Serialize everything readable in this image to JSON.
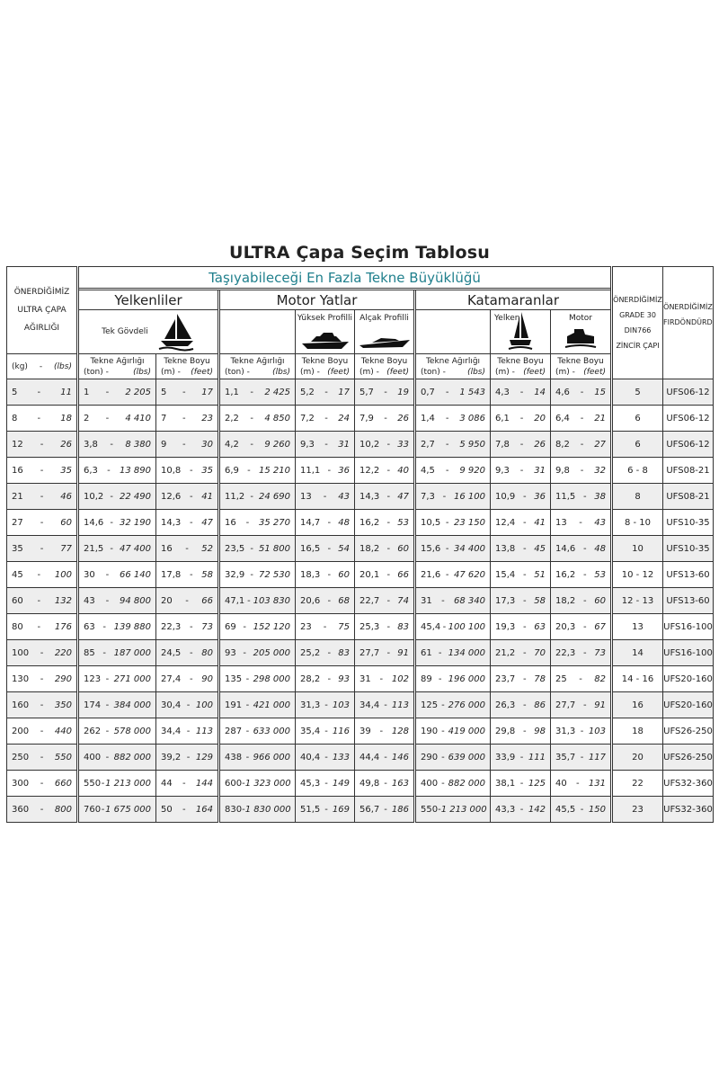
{
  "title": "ULTRA Çapa Seçim Tablosu",
  "header": {
    "main": "Taşıyabileceği En Fazla Tekne Büyüklüğü",
    "anchor_weight": [
      "ÖNERDİĞİMİZ",
      "ULTRA ÇAPA",
      "AĞIRLIĞI"
    ],
    "anchor_unit_a": "(kg)",
    "anchor_unit_b": "(lbs)",
    "groups": [
      "Yelkenliler",
      "Motor Yatlar",
      "Katamaranlar"
    ],
    "sail_type": "Tek Gövdeli",
    "motor_types": [
      "Yüksek Profilli",
      "Alçak Profilli"
    ],
    "cat_types": [
      "Yelken",
      "Motor"
    ],
    "chain": [
      "ÖNERDİĞİMİZ",
      "GRADE 30",
      "DIN766",
      "ZİNCİR ÇAPI"
    ],
    "swivel": [
      "ÖNERDİĞİMİZ",
      "FIRDÖNDÜRDÜ"
    ],
    "weight_label": "Tekne Ağırlığı",
    "weight_units": [
      "(ton) -",
      "(lbs)"
    ],
    "length_label": "Tekne Boyu",
    "length_units": [
      "(m)  -",
      "(feet)"
    ],
    "icons": [
      "sailboat-icon",
      "high-profile-yacht-icon",
      "low-profile-yacht-icon",
      "sail-catamaran-icon",
      "motor-catamaran-icon"
    ]
  },
  "rows": [
    [
      [
        "5",
        "11"
      ],
      [
        "1",
        "2 205"
      ],
      [
        "5",
        "17"
      ],
      [
        "1,1",
        "2 425"
      ],
      [
        "5,2",
        "17"
      ],
      [
        "5,7",
        "19"
      ],
      [
        "0,7",
        "1 543"
      ],
      [
        "4,3",
        "14"
      ],
      [
        "4,6",
        "15"
      ],
      "5",
      "UFS06-12"
    ],
    [
      [
        "8",
        "18"
      ],
      [
        "2",
        "4 410"
      ],
      [
        "7",
        "23"
      ],
      [
        "2,2",
        "4 850"
      ],
      [
        "7,2",
        "24"
      ],
      [
        "7,9",
        "26"
      ],
      [
        "1,4",
        "3 086"
      ],
      [
        "6,1",
        "20"
      ],
      [
        "6,4",
        "21"
      ],
      "6",
      "UFS06-12"
    ],
    [
      [
        "12",
        "26"
      ],
      [
        "3,8",
        "8 380"
      ],
      [
        "9",
        "30"
      ],
      [
        "4,2",
        "9 260"
      ],
      [
        "9,3",
        "31"
      ],
      [
        "10,2",
        "33"
      ],
      [
        "2,7",
        "5 950"
      ],
      [
        "7,8",
        "26"
      ],
      [
        "8,2",
        "27"
      ],
      "6",
      "UFS06-12"
    ],
    [
      [
        "16",
        "35"
      ],
      [
        "6,3",
        "13 890"
      ],
      [
        "10,8",
        "35"
      ],
      [
        "6,9",
        "15 210"
      ],
      [
        "11,1",
        "36"
      ],
      [
        "12,2",
        "40"
      ],
      [
        "4,5",
        "9 920"
      ],
      [
        "9,3",
        "31"
      ],
      [
        "9,8",
        "32"
      ],
      "6 - 8",
      "UFS08-21"
    ],
    [
      [
        "21",
        "46"
      ],
      [
        "10,2",
        "22 490"
      ],
      [
        "12,6",
        "41"
      ],
      [
        "11,2",
        "24 690"
      ],
      [
        "13",
        "43"
      ],
      [
        "14,3",
        "47"
      ],
      [
        "7,3",
        "16 100"
      ],
      [
        "10,9",
        "36"
      ],
      [
        "11,5",
        "38"
      ],
      "8",
      "UFS08-21"
    ],
    [
      [
        "27",
        "60"
      ],
      [
        "14,6",
        "32 190"
      ],
      [
        "14,3",
        "47"
      ],
      [
        "16",
        "35 270"
      ],
      [
        "14,7",
        "48"
      ],
      [
        "16,2",
        "53"
      ],
      [
        "10,5",
        "23 150"
      ],
      [
        "12,4",
        "41"
      ],
      [
        "13",
        "43"
      ],
      "8 - 10",
      "UFS10-35"
    ],
    [
      [
        "35",
        "77"
      ],
      [
        "21,5",
        "47 400"
      ],
      [
        "16",
        "52"
      ],
      [
        "23,5",
        "51 800"
      ],
      [
        "16,5",
        "54"
      ],
      [
        "18,2",
        "60"
      ],
      [
        "15,6",
        "34 400"
      ],
      [
        "13,8",
        "45"
      ],
      [
        "14,6",
        "48"
      ],
      "10",
      "UFS10-35"
    ],
    [
      [
        "45",
        "100"
      ],
      [
        "30",
        "66 140"
      ],
      [
        "17,8",
        "58"
      ],
      [
        "32,9",
        "72 530"
      ],
      [
        "18,3",
        "60"
      ],
      [
        "20,1",
        "66"
      ],
      [
        "21,6",
        "47 620"
      ],
      [
        "15,4",
        "51"
      ],
      [
        "16,2",
        "53"
      ],
      "10 - 12",
      "UFS13-60"
    ],
    [
      [
        "60",
        "132"
      ],
      [
        "43",
        "94 800"
      ],
      [
        "20",
        "66"
      ],
      [
        "47,1",
        "103 830"
      ],
      [
        "20,6",
        "68"
      ],
      [
        "22,7",
        "74"
      ],
      [
        "31",
        "68 340"
      ],
      [
        "17,3",
        "58"
      ],
      [
        "18,2",
        "60"
      ],
      "12 - 13",
      "UFS13-60"
    ],
    [
      [
        "80",
        "176"
      ],
      [
        "63",
        "139 880"
      ],
      [
        "22,3",
        "73"
      ],
      [
        "69",
        "152 120"
      ],
      [
        "23",
        "75"
      ],
      [
        "25,3",
        "83"
      ],
      [
        "45,4",
        "100 100"
      ],
      [
        "19,3",
        "63"
      ],
      [
        "20,3",
        "67"
      ],
      "13",
      "UFS16-100"
    ],
    [
      [
        "100",
        "220"
      ],
      [
        "85",
        "187 000"
      ],
      [
        "24,5",
        "80"
      ],
      [
        "93",
        "205 000"
      ],
      [
        "25,2",
        "83"
      ],
      [
        "27,7",
        "91"
      ],
      [
        "61",
        "134 000"
      ],
      [
        "21,2",
        "70"
      ],
      [
        "22,3",
        "73"
      ],
      "14",
      "UFS16-100"
    ],
    [
      [
        "130",
        "290"
      ],
      [
        "123",
        "271 000"
      ],
      [
        "27,4",
        "90"
      ],
      [
        "135",
        "298 000"
      ],
      [
        "28,2",
        "93"
      ],
      [
        "31",
        "102"
      ],
      [
        "89",
        "196 000"
      ],
      [
        "23,7",
        "78"
      ],
      [
        "25",
        "82"
      ],
      "14 - 16",
      "UFS20-160"
    ],
    [
      [
        "160",
        "350"
      ],
      [
        "174",
        "384 000"
      ],
      [
        "30,4",
        "100"
      ],
      [
        "191",
        "421 000"
      ],
      [
        "31,3",
        "103"
      ],
      [
        "34,4",
        "113"
      ],
      [
        "125",
        "276 000"
      ],
      [
        "26,3",
        "86"
      ],
      [
        "27,7",
        "91"
      ],
      "16",
      "UFS20-160"
    ],
    [
      [
        "200",
        "440"
      ],
      [
        "262",
        "578 000"
      ],
      [
        "34,4",
        "113"
      ],
      [
        "287",
        "633 000"
      ],
      [
        "35,4",
        "116"
      ],
      [
        "39",
        "128"
      ],
      [
        "190",
        "419 000"
      ],
      [
        "29,8",
        "98"
      ],
      [
        "31,3",
        "103"
      ],
      "18",
      "UFS26-250"
    ],
    [
      [
        "250",
        "550"
      ],
      [
        "400",
        "882 000"
      ],
      [
        "39,2",
        "129"
      ],
      [
        "438",
        "966 000"
      ],
      [
        "40,4",
        "133"
      ],
      [
        "44,4",
        "146"
      ],
      [
        "290",
        "639 000"
      ],
      [
        "33,9",
        "111"
      ],
      [
        "35,7",
        "117"
      ],
      "20",
      "UFS26-250"
    ],
    [
      [
        "300",
        "660"
      ],
      [
        "550",
        "1 213 000"
      ],
      [
        "44",
        "144"
      ],
      [
        "600",
        "1 323 000"
      ],
      [
        "45,3",
        "149"
      ],
      [
        "49,8",
        "163"
      ],
      [
        "400",
        "882 000"
      ],
      [
        "38,1",
        "125"
      ],
      [
        "40",
        "131"
      ],
      "22",
      "UFS32-360"
    ],
    [
      [
        "360",
        "800"
      ],
      [
        "760",
        "1 675 000"
      ],
      [
        "50",
        "164"
      ],
      [
        "830",
        "1 830 000"
      ],
      [
        "51,5",
        "169"
      ],
      [
        "56,7",
        "186"
      ],
      [
        "550",
        "1 213 000"
      ],
      [
        "43,3",
        "142"
      ],
      [
        "45,5",
        "150"
      ],
      "23",
      "UFS32-360"
    ]
  ]
}
